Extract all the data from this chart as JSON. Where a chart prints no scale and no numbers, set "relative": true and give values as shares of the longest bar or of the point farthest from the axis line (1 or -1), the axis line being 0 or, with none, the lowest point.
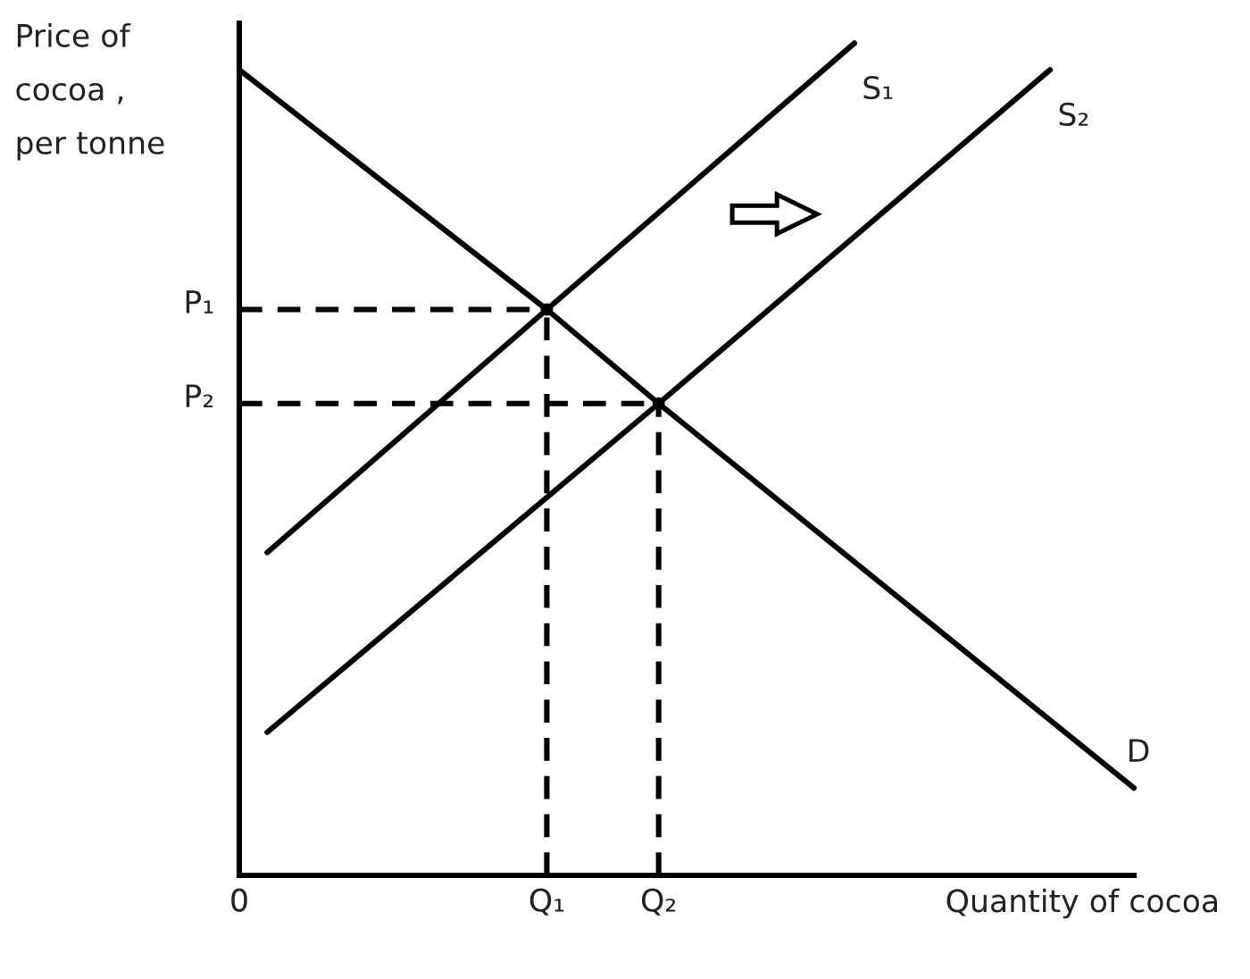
{
  "chart_data": {
    "type": "line",
    "relative": true,
    "line_style": "solid",
    "xlabel": "Quantity of cocoa",
    "ylabel": "Price of\ncocoa ,\nper tonne",
    "categories": [
      "0",
      null,
      null,
      null,
      null,
      null,
      null,
      null,
      null,
      null,
      null,
      "Q₁",
      null,
      null,
      null,
      "Q₂",
      null,
      null,
      null,
      null,
      null,
      null,
      null,
      null,
      null,
      null,
      null,
      null,
      null,
      null,
      null,
      null,
      null
    ],
    "series": [
      {
        "name": "S₁",
        "color": "#000000",
        "values": [
          null,
          0.388,
          null,
          null,
          null,
          null,
          null,
          null,
          null,
          null,
          null,
          0.68,
          null,
          null,
          null,
          null,
          null,
          null,
          null,
          null,
          null,
          null,
          1.0,
          null,
          null,
          null,
          null,
          null,
          null,
          null,
          null,
          null,
          null
        ]
      },
      {
        "name": "S₂",
        "color": "#000000",
        "values": [
          null,
          0.172,
          null,
          null,
          null,
          null,
          null,
          null,
          null,
          null,
          null,
          null,
          null,
          null,
          null,
          0.567,
          null,
          null,
          null,
          null,
          null,
          null,
          null,
          null,
          null,
          null,
          null,
          null,
          null,
          0.968,
          null,
          null,
          null
        ]
      },
      {
        "name": "D",
        "color": "#000000",
        "values": [
          0.968,
          null,
          null,
          null,
          null,
          null,
          null,
          null,
          null,
          null,
          null,
          0.68,
          null,
          null,
          null,
          0.567,
          null,
          null,
          null,
          null,
          null,
          null,
          null,
          null,
          null,
          null,
          null,
          null,
          null,
          null,
          null,
          null,
          0.105
        ]
      },
      {
        "name": "P₁",
        "color": "#000000",
        "line_style": "dashed",
        "values": [
          0.68,
          null,
          null,
          null,
          null,
          null,
          null,
          null,
          null,
          null,
          null,
          0.68,
          null,
          null,
          null,
          null,
          null,
          null,
          null,
          null,
          null,
          null,
          null,
          null,
          null,
          null,
          null,
          null,
          null,
          null,
          null,
          null,
          null
        ]
      },
      {
        "name": "P₂",
        "color": "#000000",
        "line_style": "dashed",
        "values": [
          0.567,
          null,
          null,
          null,
          null,
          null,
          null,
          null,
          null,
          null,
          null,
          null,
          null,
          null,
          null,
          0.567,
          null,
          null,
          null,
          null,
          null,
          null,
          null,
          null,
          null,
          null,
          null,
          null,
          null,
          null,
          null,
          null,
          null
        ]
      },
      {
        "type": "lollipop",
        "color": "#000000",
        "line_style": "dashed",
        "marker": "circle",
        "values": [
          null,
          null,
          null,
          null,
          null,
          null,
          null,
          null,
          null,
          null,
          null,
          0.68,
          null,
          null,
          null,
          0.567,
          null,
          null,
          null,
          null,
          null,
          null,
          null,
          null,
          null,
          null,
          null,
          null,
          null,
          null,
          null,
          null,
          null
        ]
      }
    ]
  }
}
